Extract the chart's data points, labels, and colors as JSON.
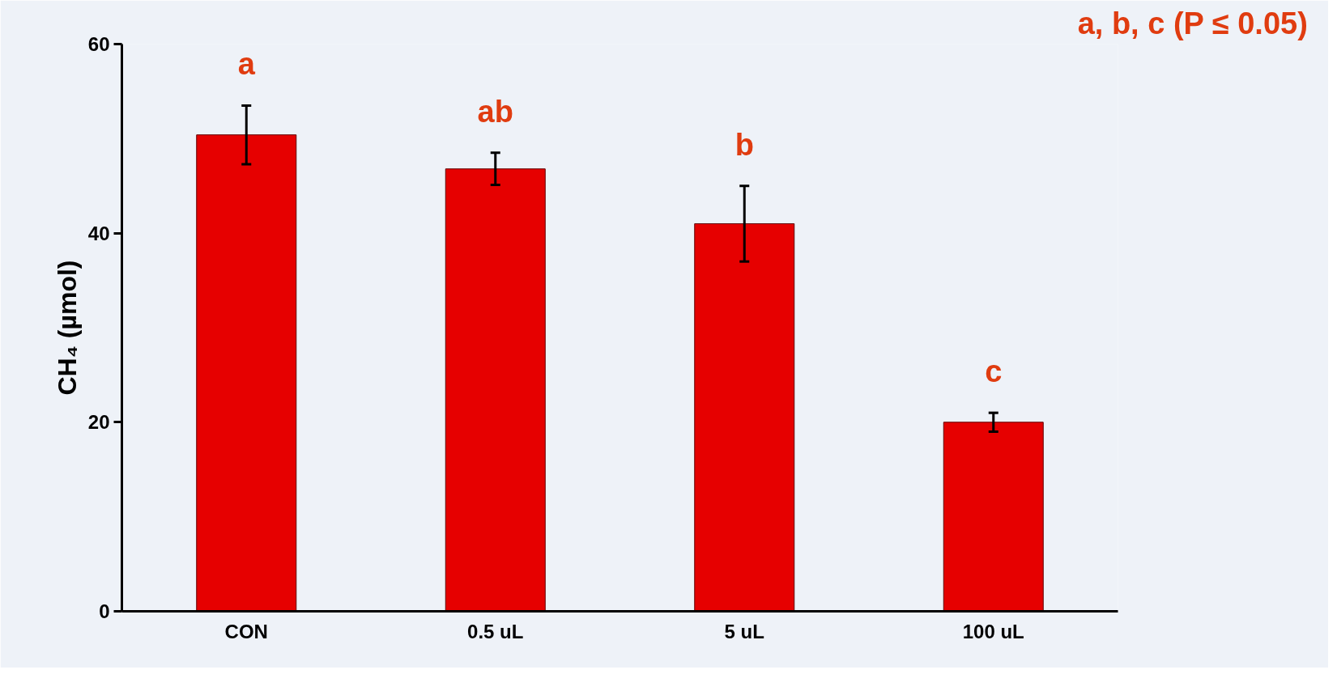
{
  "chart_data": {
    "type": "bar",
    "ylabel": "CH₄ (µmol)",
    "categories": [
      "CON",
      "0.5 uL",
      "5 uL",
      "100 uL"
    ],
    "values": [
      50.4,
      46.8,
      41.0,
      20.0
    ],
    "errors": [
      3.1,
      1.7,
      4.0,
      1.0
    ],
    "color": "#e60000",
    "ylim": [
      0,
      60
    ],
    "yticks": [
      0,
      20,
      40,
      60
    ],
    "grid": false,
    "annotations": [
      "a",
      "ab",
      "b",
      "c",
      "a, b, c (P ≤ 0.05)"
    ]
  }
}
